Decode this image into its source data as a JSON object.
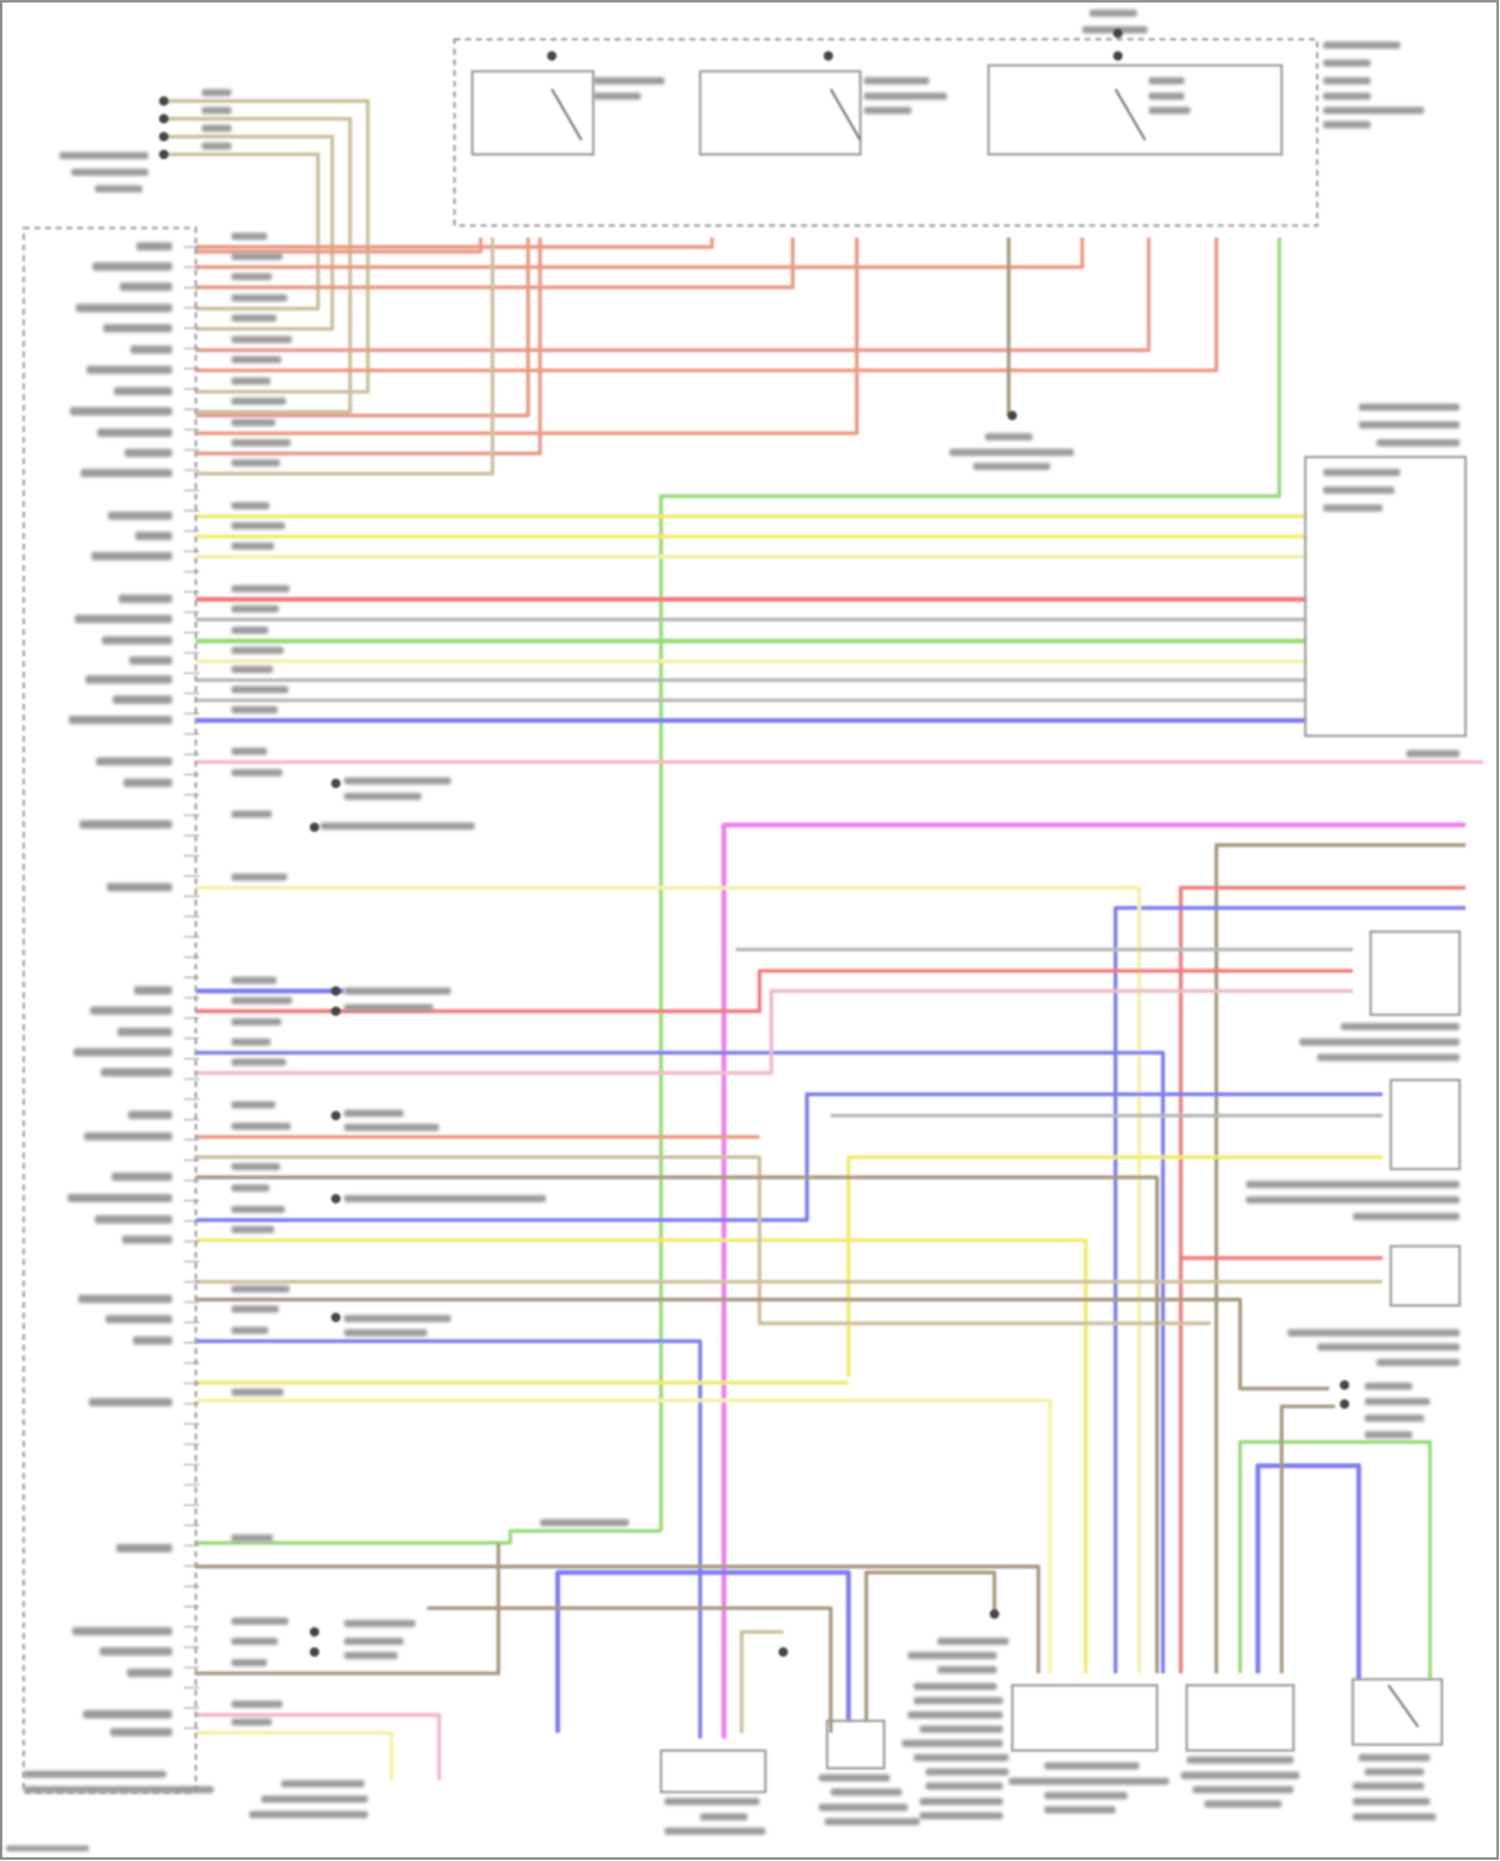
{
  "diagram": {
    "type": "wiring-schematic",
    "text_legible": false,
    "connector_pin_rows": 74,
    "wire_colors": {
      "orange": "#ea9a84",
      "tan": "#cdbf9f",
      "brown": "#a99a80",
      "yellow": "#f2ea6a",
      "lightyellow": "#f4f0a8",
      "red": "#f07a7a",
      "green": "#9ada7c",
      "blue": "#7b7bf0",
      "magenta": "#f07cf0",
      "pink": "#f2b8c6",
      "grey": "#b8b8b8"
    },
    "line_color": "#9a9a9a",
    "ground_color": "#444444"
  }
}
